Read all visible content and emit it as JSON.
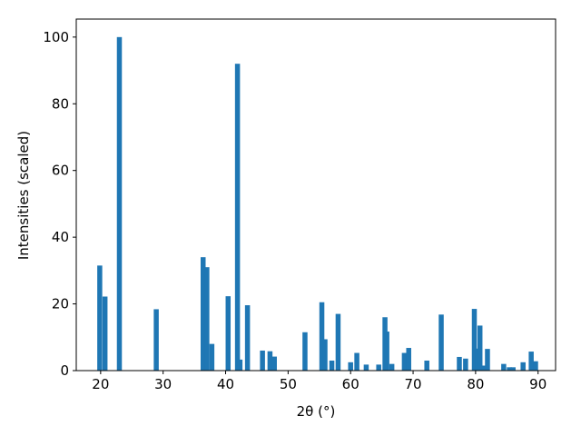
{
  "chart_data": {
    "type": "bar",
    "xlabel": "2θ (°)",
    "ylabel": "Intensities (scaled)",
    "color": "#1f77b4",
    "x": [
      19.86,
      20.7,
      23.0,
      28.9,
      36.4,
      37.0,
      37.8,
      40.4,
      41.9,
      42.3,
      43.5,
      45.9,
      47.1,
      47.8,
      52.7,
      55.4,
      55.9,
      57.0,
      58.0,
      60.0,
      61.0,
      62.5,
      64.5,
      65.5,
      65.8,
      66.6,
      68.6,
      69.3,
      72.2,
      74.5,
      77.4,
      78.4,
      79.8,
      80.4,
      80.7,
      81.3,
      81.9,
      84.5,
      85.4,
      86.0,
      87.6,
      88.9,
      89.6
    ],
    "values": [
      31.5,
      22.2,
      100,
      18.4,
      34,
      31,
      8,
      22.3,
      92,
      3.3,
      19.6,
      6,
      5.8,
      4.2,
      11.5,
      20.5,
      9.4,
      3,
      17,
      2.5,
      5.3,
      1.8,
      1.8,
      16,
      11.7,
      2,
      5.3,
      6.8,
      3,
      16.8,
      4.1,
      3.6,
      18.5,
      6.6,
      13.5,
      1.5,
      6.5,
      2,
      1,
      1,
      2.5,
      5.7,
      2.8
    ],
    "xlim": [
      16.1,
      92.8
    ],
    "ylim": [
      0,
      105.4
    ],
    "xticks": [
      20,
      30,
      40,
      50,
      60,
      70,
      80,
      90
    ],
    "yticks": [
      0,
      20,
      40,
      60,
      80,
      100
    ]
  }
}
